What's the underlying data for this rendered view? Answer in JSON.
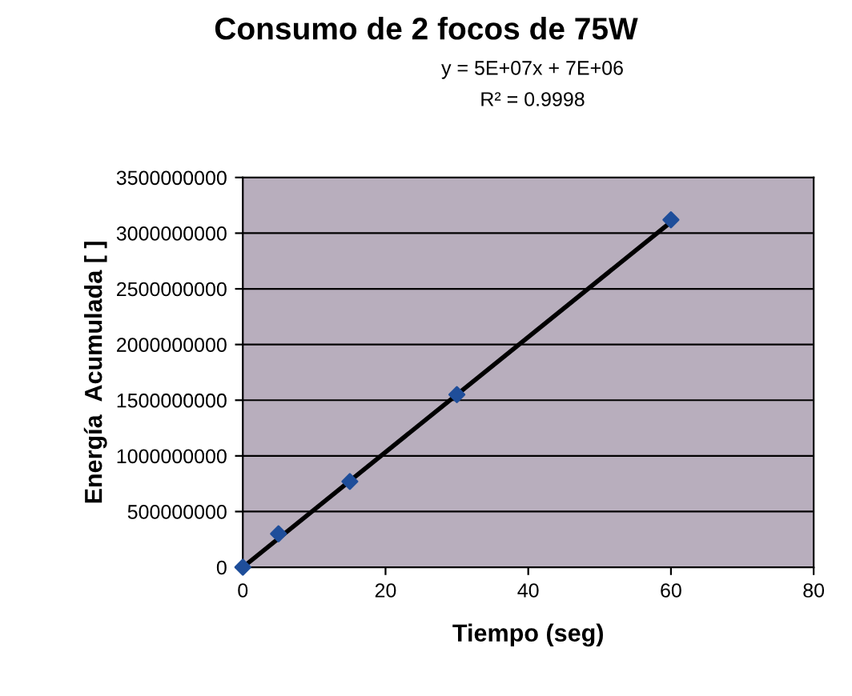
{
  "chart_data": {
    "type": "scatter",
    "title": "Consumo de 2 focos de 75W",
    "xlabel": "Tiempo (seg)",
    "ylabel": "Energía  Acumulada [ ]",
    "annotations": [
      "y = 5E+07x + 7E+06",
      "R² = 0.9998"
    ],
    "series": [
      {
        "color": "#1f4e9a",
        "marker": "diamond",
        "x": [
          0,
          5,
          15,
          30,
          60
        ],
        "values": [
          0,
          300000000,
          770000000,
          1550000000,
          3120000000
        ]
      },
      {
        "type": "line",
        "color": "#000000",
        "marker": "none",
        "line_style": "solid",
        "x": [
          0,
          60
        ],
        "values": [
          0,
          3100000000
        ]
      }
    ],
    "xlim": [
      0,
      80
    ],
    "xticks": [
      0,
      20,
      40,
      60,
      80
    ],
    "ylim": [
      0,
      3500000000
    ],
    "yticks": [
      0,
      500000000,
      1000000000,
      1500000000,
      2000000000,
      2500000000,
      3000000000,
      3500000000
    ],
    "grid": "y"
  }
}
